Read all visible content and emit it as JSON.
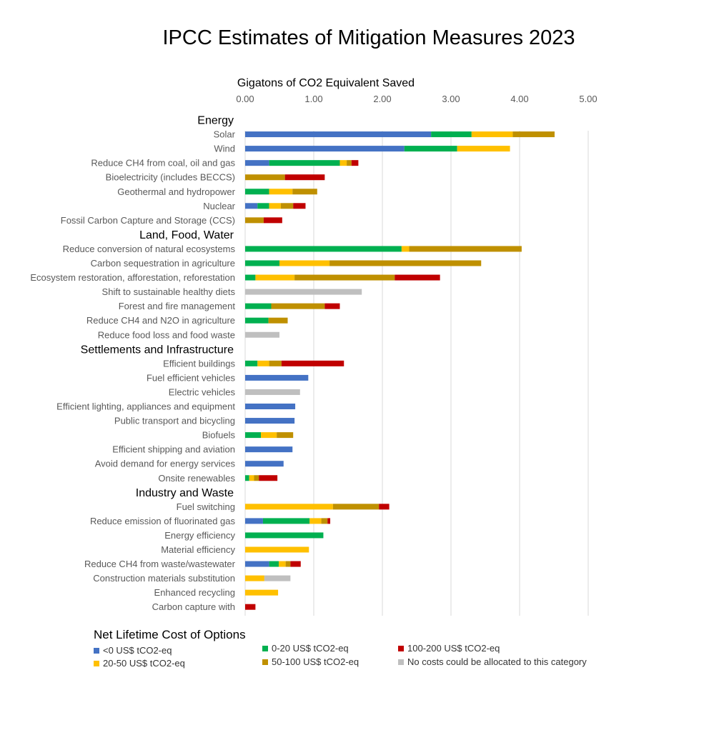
{
  "chart_data": {
    "type": "bar",
    "orientation": "horizontal",
    "stacked": true,
    "title": "IPCC Estimates of Mitigation Measures 2023",
    "xlabel": "Gigatons of CO2 Equivalent Saved",
    "xlim": [
      0,
      5
    ],
    "xticks": [
      "0.00",
      "1.00",
      "2.00",
      "3.00",
      "4.00",
      "5.00"
    ],
    "x_axis_position": "top",
    "grid": true,
    "legend_title": "Net Lifetime Cost of Options",
    "legend_position": "bottom",
    "series": [
      {
        "key": "c0",
        "name": "<0 US$ tCO2-eq",
        "color": "#4472C4"
      },
      {
        "key": "c1",
        "name": "0-20 US$ tCO2-eq",
        "color": "#00B050"
      },
      {
        "key": "c2",
        "name": "20-50 US$ tCO2-eq",
        "color": "#FFC000"
      },
      {
        "key": "c3",
        "name": "50-100 US$ tCO2-eq",
        "color": "#BF9000"
      },
      {
        "key": "c4",
        "name": "100-200 US$ tCO2-eq",
        "color": "#C00000"
      },
      {
        "key": "c5",
        "name": "No costs could be allocated to this category",
        "color": "#BFBFBF"
      }
    ],
    "rows": [
      {
        "kind": "group",
        "label": "Energy"
      },
      {
        "kind": "bar",
        "label": "Solar",
        "values": [
          2.71,
          0.59,
          0.6,
          0.61,
          0,
          0
        ]
      },
      {
        "kind": "bar",
        "label": "Wind",
        "values": [
          2.32,
          0.77,
          0.77,
          0,
          0,
          0
        ]
      },
      {
        "kind": "bar",
        "label": "Reduce CH4 from coal, oil and gas",
        "values": [
          0.35,
          1.03,
          0.1,
          0.07,
          0.1,
          0
        ]
      },
      {
        "kind": "bar",
        "label": "Bioelectricity (includes BECCS)",
        "values": [
          0,
          0,
          0,
          0.58,
          0.58,
          0
        ]
      },
      {
        "kind": "bar",
        "label": "Geothermal and hydropower",
        "values": [
          0,
          0.35,
          0.34,
          0.36,
          0,
          0
        ]
      },
      {
        "kind": "bar",
        "label": "Nuclear",
        "values": [
          0.18,
          0.17,
          0.17,
          0.18,
          0.18,
          0
        ]
      },
      {
        "kind": "bar",
        "label": "Fossil Carbon Capture and Storage (CCS)",
        "values": [
          0,
          0,
          0,
          0.27,
          0.27,
          0
        ]
      },
      {
        "kind": "group",
        "label": "Land, Food, Water"
      },
      {
        "kind": "bar",
        "label": "Reduce conversion of natural ecosystems",
        "values": [
          0,
          2.28,
          0.11,
          1.64,
          0,
          0
        ]
      },
      {
        "kind": "bar",
        "label": "Carbon sequestration in agriculture",
        "values": [
          0,
          0.5,
          0.73,
          2.21,
          0,
          0
        ]
      },
      {
        "kind": "bar",
        "label": "Ecosystem restoration, afforestation, reforestation",
        "values": [
          0,
          0.15,
          0.57,
          1.46,
          0.66,
          0
        ]
      },
      {
        "kind": "bar",
        "label": "Shift to sustainable healthy diets",
        "values": [
          0,
          0,
          0,
          0,
          0,
          1.7
        ]
      },
      {
        "kind": "bar",
        "label": "Forest and fire management",
        "values": [
          0,
          0.38,
          0,
          0.78,
          0.22,
          0
        ]
      },
      {
        "kind": "bar",
        "label": "Reduce CH4 and N2O in agriculture",
        "values": [
          0,
          0.34,
          0,
          0.28,
          0,
          0
        ]
      },
      {
        "kind": "bar",
        "label": "Reduce food loss and food waste",
        "values": [
          0,
          0,
          0,
          0,
          0,
          0.5
        ]
      },
      {
        "kind": "group",
        "label": "Settlements and Infrastructure"
      },
      {
        "kind": "bar",
        "label": "Efficient buildings",
        "values": [
          0,
          0.18,
          0.17,
          0.18,
          0.91,
          0
        ]
      },
      {
        "kind": "bar",
        "label": "Fuel efficient vehicles",
        "values": [
          0.92,
          0,
          0,
          0,
          0,
          0
        ]
      },
      {
        "kind": "bar",
        "label": "Electric vehicles",
        "values": [
          0,
          0,
          0,
          0,
          0,
          0.8
        ]
      },
      {
        "kind": "bar",
        "label": "Efficient lighting, appliances and equipment",
        "values": [
          0.73,
          0,
          0,
          0,
          0,
          0
        ]
      },
      {
        "kind": "bar",
        "label": "Public transport and bicycling",
        "values": [
          0.72,
          0,
          0,
          0,
          0,
          0
        ]
      },
      {
        "kind": "bar",
        "label": "Biofuels",
        "values": [
          0,
          0.23,
          0.23,
          0.24,
          0,
          0
        ]
      },
      {
        "kind": "bar",
        "label": "Efficient shipping and aviation",
        "values": [
          0.69,
          0,
          0,
          0,
          0,
          0
        ]
      },
      {
        "kind": "bar",
        "label": "Avoid demand for energy services",
        "values": [
          0.56,
          0,
          0,
          0,
          0,
          0
        ]
      },
      {
        "kind": "bar",
        "label": "Onsite renewables",
        "values": [
          0,
          0.06,
          0.07,
          0.07,
          0.27,
          0
        ]
      },
      {
        "kind": "group",
        "label": "Industry and Waste"
      },
      {
        "kind": "bar",
        "label": "Fuel switching",
        "values": [
          0,
          0,
          1.28,
          0.67,
          0.15,
          0
        ]
      },
      {
        "kind": "bar",
        "label": "Reduce emission of fluorinated gas",
        "values": [
          0.26,
          0.68,
          0.17,
          0.09,
          0.04,
          0
        ]
      },
      {
        "kind": "bar",
        "label": "Energy efficiency",
        "values": [
          0,
          1.14,
          0,
          0,
          0,
          0
        ]
      },
      {
        "kind": "bar",
        "label": "Material efficiency",
        "values": [
          0,
          0,
          0.93,
          0,
          0,
          0
        ]
      },
      {
        "kind": "bar",
        "label": "Reduce CH4 from waste/wastewater",
        "values": [
          0.35,
          0.14,
          0.1,
          0.07,
          0.15,
          0
        ]
      },
      {
        "kind": "bar",
        "label": "Construction materials substitution",
        "values": [
          0,
          0,
          0.28,
          0,
          0,
          0.38
        ]
      },
      {
        "kind": "bar",
        "label": "Enhanced recycling",
        "values": [
          0,
          0,
          0.48,
          0,
          0,
          0
        ]
      },
      {
        "kind": "bar",
        "label": "Carbon capture with",
        "values": [
          0,
          0,
          0,
          0,
          0.15,
          0
        ]
      }
    ]
  }
}
